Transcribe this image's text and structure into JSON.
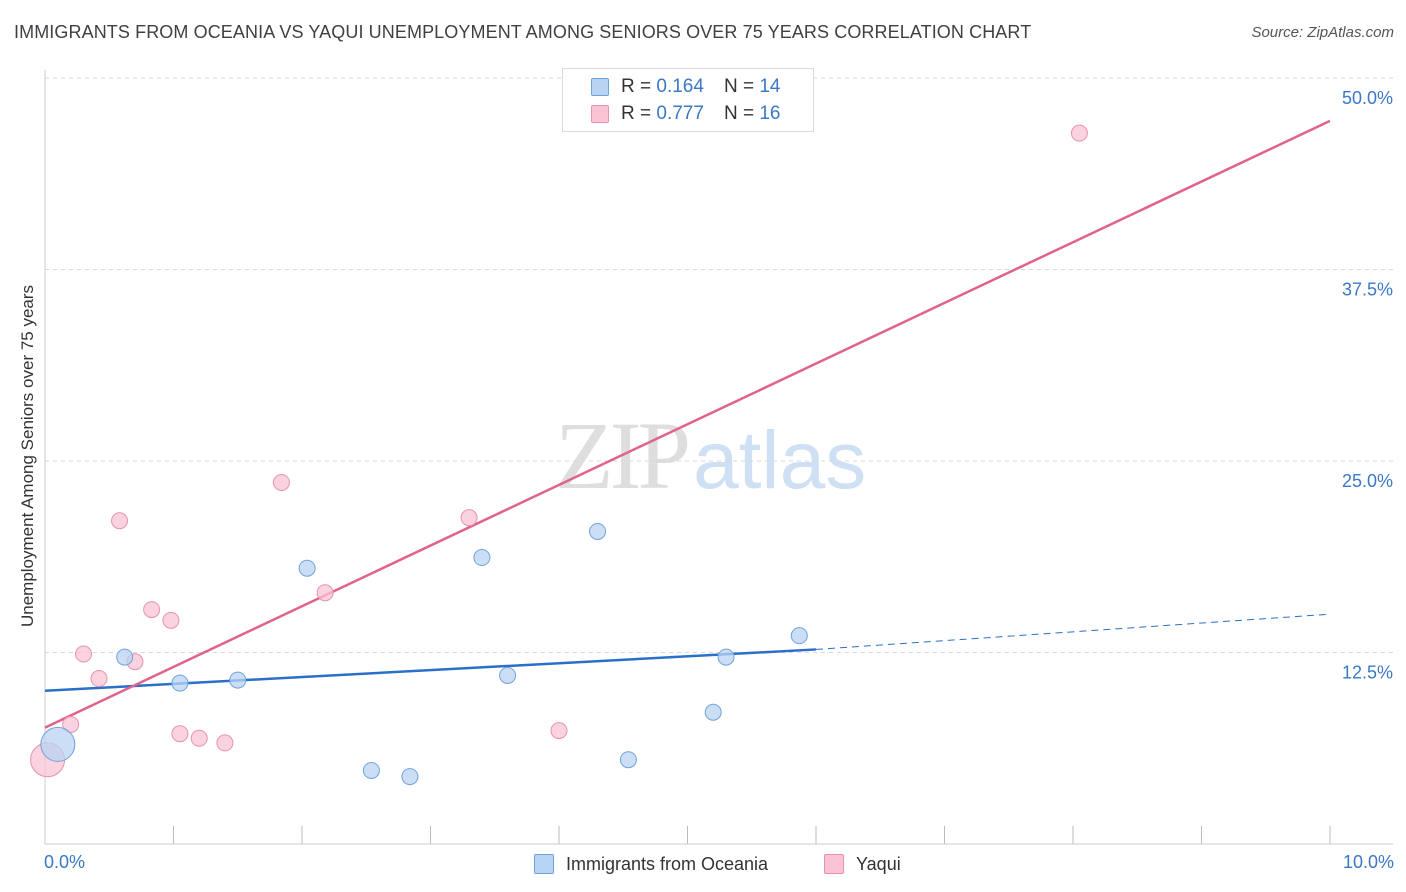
{
  "title": "IMMIGRANTS FROM OCEANIA VS YAQUI UNEMPLOYMENT AMONG SENIORS OVER 75 YEARS CORRELATION CHART",
  "source": "Source: ZipAtlas.com",
  "watermark": {
    "zip": "ZIP",
    "atlas": "atlas"
  },
  "colors": {
    "blue_fill": "#b9d3f2",
    "blue_stroke": "#6fa3dc",
    "blue_line": "#2a6fc9",
    "pink_fill": "#f9c3d4",
    "pink_stroke": "#e793ae",
    "pink_line": "#e0628d",
    "grid": "#d8d8d8",
    "tick_text": "#3b78c7"
  },
  "legend": {
    "rows": [
      {
        "r_label": "R =",
        "r_value": "0.164",
        "n_label": "N =",
        "n_value": "14"
      },
      {
        "r_label": "R =",
        "r_value": "0.777",
        "n_label": "N =",
        "n_value": "16"
      }
    ]
  },
  "chart_data": {
    "type": "scatter",
    "title": "IMMIGRANTS FROM OCEANIA VS YAQUI UNEMPLOYMENT AMONG SENIORS OVER 75 YEARS CORRELATION CHART",
    "xlabel": "",
    "ylabel": "Unemployment Among Seniors over 75 years",
    "xlim": [
      0,
      10
    ],
    "ylim": [
      0,
      50
    ],
    "x_tick_labels": [
      {
        "value": 0,
        "label": "0.0%"
      },
      {
        "value": 10,
        "label": "10.0%"
      }
    ],
    "y_tick_labels": [
      {
        "value": 12.5,
        "label": "12.5%"
      },
      {
        "value": 25,
        "label": "25.0%"
      },
      {
        "value": 37.5,
        "label": "37.5%"
      },
      {
        "value": 50,
        "label": "50.0%"
      }
    ],
    "series": [
      {
        "name": "Immigrants from Oceania",
        "r": 0.164,
        "n": 14,
        "points": [
          {
            "x": 0.1,
            "y": 6.5,
            "size": "large"
          },
          {
            "x": 0.62,
            "y": 12.2
          },
          {
            "x": 1.05,
            "y": 10.5
          },
          {
            "x": 1.5,
            "y": 10.7
          },
          {
            "x": 2.04,
            "y": 18.0
          },
          {
            "x": 2.54,
            "y": 4.8
          },
          {
            "x": 2.84,
            "y": 4.4
          },
          {
            "x": 3.4,
            "y": 18.7
          },
          {
            "x": 3.6,
            "y": 11.0
          },
          {
            "x": 4.3,
            "y": 20.4
          },
          {
            "x": 4.54,
            "y": 5.5
          },
          {
            "x": 5.2,
            "y": 8.6
          },
          {
            "x": 5.3,
            "y": 12.2
          },
          {
            "x": 5.87,
            "y": 13.6
          }
        ],
        "trend": {
          "x1": 0.0,
          "y1": 10.0,
          "x2": 6.0,
          "y2": 12.7,
          "dash_to_x": 10.0,
          "dash_to_y": 15.0
        }
      },
      {
        "name": "Yaqui",
        "r": 0.777,
        "n": 16,
        "points": [
          {
            "x": 0.02,
            "y": 5.5,
            "size": "large"
          },
          {
            "x": 0.2,
            "y": 7.8
          },
          {
            "x": 0.3,
            "y": 12.4
          },
          {
            "x": 0.42,
            "y": 10.8
          },
          {
            "x": 0.58,
            "y": 21.1
          },
          {
            "x": 0.7,
            "y": 11.9
          },
          {
            "x": 0.83,
            "y": 15.3
          },
          {
            "x": 0.98,
            "y": 14.6
          },
          {
            "x": 1.05,
            "y": 7.2
          },
          {
            "x": 1.2,
            "y": 6.9
          },
          {
            "x": 1.4,
            "y": 6.6
          },
          {
            "x": 1.84,
            "y": 23.6
          },
          {
            "x": 2.18,
            "y": 16.4
          },
          {
            "x": 3.3,
            "y": 21.3
          },
          {
            "x": 4.0,
            "y": 7.4
          },
          {
            "x": 8.05,
            "y": 46.4
          }
        ],
        "trend": {
          "x1": 0.0,
          "y1": 7.6,
          "x2": 10.0,
          "y2": 47.2
        }
      }
    ]
  }
}
